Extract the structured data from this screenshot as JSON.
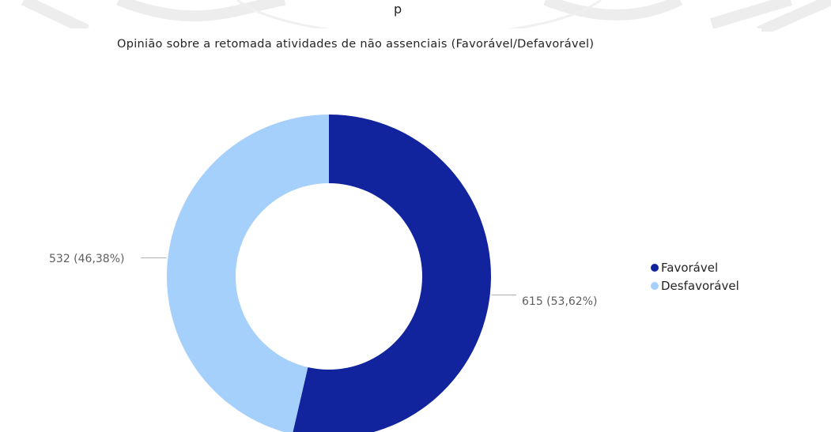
{
  "header_fragment": "p",
  "chart_data": {
    "type": "pie",
    "subtype": "donut",
    "title": "Opinião sobre a retomada atividades de não assenciais (Favorável/Defavorável)",
    "categories": [
      "Favorável",
      "Desfavorável"
    ],
    "values": [
      615,
      532
    ],
    "percent_labels": [
      "53,62%",
      "46,38%"
    ],
    "data_labels": [
      "615 (53,62%)",
      "532 (46,38%)"
    ],
    "colors": [
      "#12239e",
      "#a5d0fb"
    ],
    "legend": {
      "position": "right",
      "entries": [
        "Favorável",
        "Desfavorável"
      ]
    }
  }
}
